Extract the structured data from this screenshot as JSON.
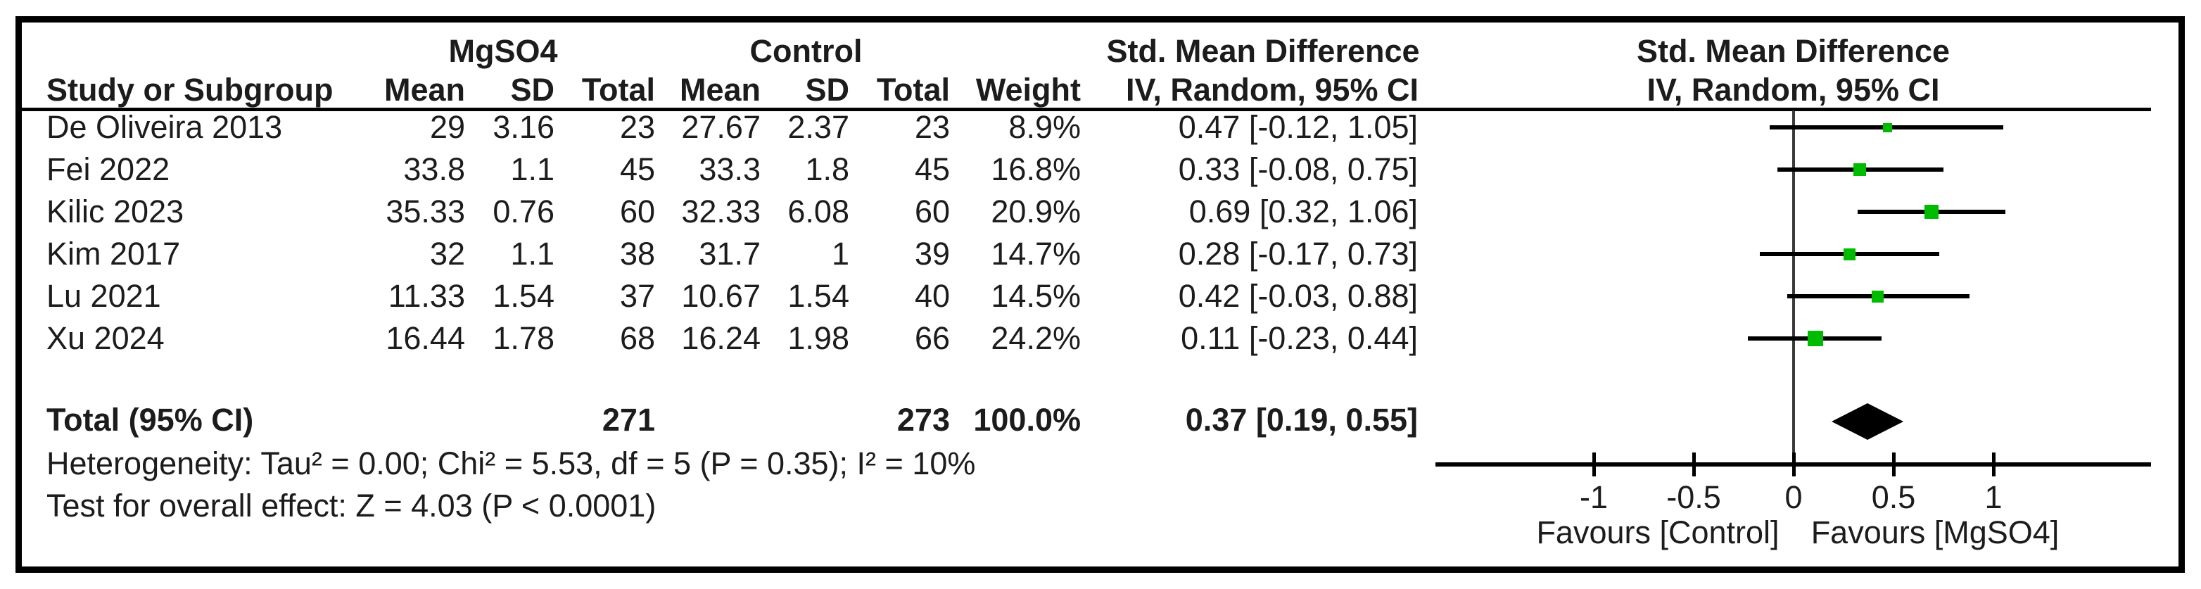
{
  "table": {
    "group_headers": {
      "experimental": "MgSO4",
      "control": "Control",
      "effect": "Std. Mean Difference"
    },
    "columns": {
      "study": "Study or Subgroup",
      "mean": "Mean",
      "sd": "SD",
      "total": "Total",
      "weight": "Weight",
      "iv": "IV, Random, 95% CI"
    },
    "rows": [
      {
        "study": "De Oliveira 2013",
        "mg_mean": "29",
        "mg_sd": "3.16",
        "mg_total": "23",
        "c_mean": "27.67",
        "c_sd": "2.37",
        "c_total": "23",
        "weight": "8.9%",
        "ci": "0.47 [-0.12, 1.05]"
      },
      {
        "study": "Fei 2022",
        "mg_mean": "33.8",
        "mg_sd": "1.1",
        "mg_total": "45",
        "c_mean": "33.3",
        "c_sd": "1.8",
        "c_total": "45",
        "weight": "16.8%",
        "ci": "0.33 [-0.08, 0.75]"
      },
      {
        "study": "Kilic 2023",
        "mg_mean": "35.33",
        "mg_sd": "0.76",
        "mg_total": "60",
        "c_mean": "32.33",
        "c_sd": "6.08",
        "c_total": "60",
        "weight": "20.9%",
        "ci": "0.69 [0.32, 1.06]"
      },
      {
        "study": "Kim 2017",
        "mg_mean": "32",
        "mg_sd": "1.1",
        "mg_total": "38",
        "c_mean": "31.7",
        "c_sd": "1",
        "c_total": "39",
        "weight": "14.7%",
        "ci": "0.28 [-0.17, 0.73]"
      },
      {
        "study": "Lu 2021",
        "mg_mean": "11.33",
        "mg_sd": "1.54",
        "mg_total": "37",
        "c_mean": "10.67",
        "c_sd": "1.54",
        "c_total": "40",
        "weight": "14.5%",
        "ci": "0.42 [-0.03, 0.88]"
      },
      {
        "study": "Xu 2024",
        "mg_mean": "16.44",
        "mg_sd": "1.78",
        "mg_total": "68",
        "c_mean": "16.24",
        "c_sd": "1.98",
        "c_total": "66",
        "weight": "24.2%",
        "ci": "0.11 [-0.23, 0.44]"
      }
    ],
    "total_row": {
      "label": "Total (95% CI)",
      "mg_total": "271",
      "c_total": "273",
      "weight": "100.0%",
      "ci": "0.37 [0.19, 0.55]"
    }
  },
  "footnotes": {
    "heterogeneity": "Heterogeneity: Tau² = 0.00; Chi² = 5.53, df = 5 (P = 0.35); I² = 10%",
    "overall_effect": "Test for overall effect: Z = 4.03 (P < 0.0001)"
  },
  "plot": {
    "header_line1": "Std. Mean Difference",
    "header_line2": "IV, Random, 95% CI",
    "favours_left": "Favours [Control]",
    "favours_right": "Favours [MgSO4]"
  },
  "colors": {
    "marker_green": "#00BC00",
    "line_black": "#000000"
  },
  "chart_data": {
    "type": "forest",
    "effect_measure": "Std. Mean Difference",
    "model": "IV, Random, 95% CI",
    "studies": [
      {
        "name": "De Oliveira 2013",
        "est": 0.47,
        "lo": -0.12,
        "hi": 1.05,
        "weight_pct": 8.9
      },
      {
        "name": "Fei 2022",
        "est": 0.33,
        "lo": -0.08,
        "hi": 0.75,
        "weight_pct": 16.8
      },
      {
        "name": "Kilic 2023",
        "est": 0.69,
        "lo": 0.32,
        "hi": 1.06,
        "weight_pct": 20.9
      },
      {
        "name": "Kim 2017",
        "est": 0.28,
        "lo": -0.17,
        "hi": 0.73,
        "weight_pct": 14.7
      },
      {
        "name": "Lu 2021",
        "est": 0.42,
        "lo": -0.03,
        "hi": 0.88,
        "weight_pct": 14.5
      },
      {
        "name": "Xu 2024",
        "est": 0.11,
        "lo": -0.23,
        "hi": 0.44,
        "weight_pct": 24.2
      }
    ],
    "total": {
      "name": "Total (95% CI)",
      "est": 0.37,
      "lo": 0.19,
      "hi": 0.55,
      "weight_pct": 100.0
    },
    "totals": {
      "mgso4_n": 271,
      "control_n": 273
    },
    "heterogeneity": {
      "tau2": 0.0,
      "chi2": 5.53,
      "df": 5,
      "p": 0.35,
      "i2_pct": 10
    },
    "overall_test": {
      "z": 4.03,
      "p": "< 0.0001"
    },
    "x_axis": {
      "ticks": [
        -1,
        -0.5,
        0,
        0.5,
        1
      ],
      "tick_labels": [
        "-1",
        "-0.5",
        "0",
        "0.5",
        "1"
      ],
      "range_shown": [
        -1.8,
        1.8
      ],
      "favours_left": "Favours [Control]",
      "favours_right": "Favours [MgSO4]"
    }
  }
}
